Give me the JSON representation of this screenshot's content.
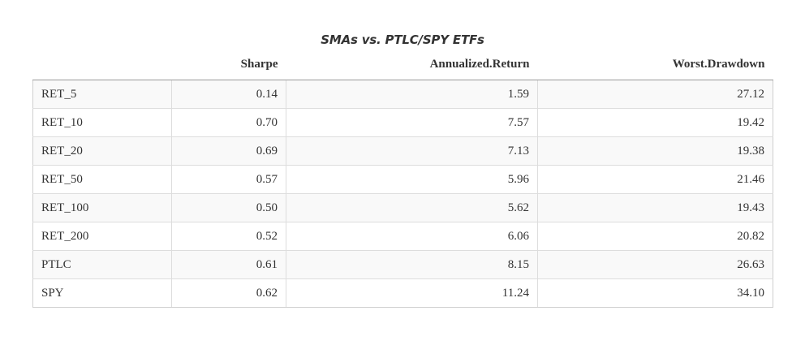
{
  "table": {
    "caption": "SMAs vs. PTLC/SPY ETFs",
    "columns": [
      "",
      "Sharpe",
      "Annualized.Return",
      "Worst.Drawdown"
    ],
    "rows": [
      [
        "RET_5",
        "0.14",
        "1.59",
        "27.12"
      ],
      [
        "RET_10",
        "0.70",
        "7.57",
        "19.42"
      ],
      [
        "RET_20",
        "0.69",
        "7.13",
        "19.38"
      ],
      [
        "RET_50",
        "0.57",
        "5.96",
        "21.46"
      ],
      [
        "RET_100",
        "0.50",
        "5.62",
        "19.43"
      ],
      [
        "RET_200",
        "0.52",
        "6.06",
        "20.82"
      ],
      [
        "PTLC",
        "0.61",
        "8.15",
        "26.63"
      ],
      [
        "SPY",
        "0.62",
        "11.24",
        "34.10"
      ]
    ]
  },
  "colors": {
    "text": "#333333",
    "stripe": "#f9f9f9",
    "border": "#dddddd"
  }
}
